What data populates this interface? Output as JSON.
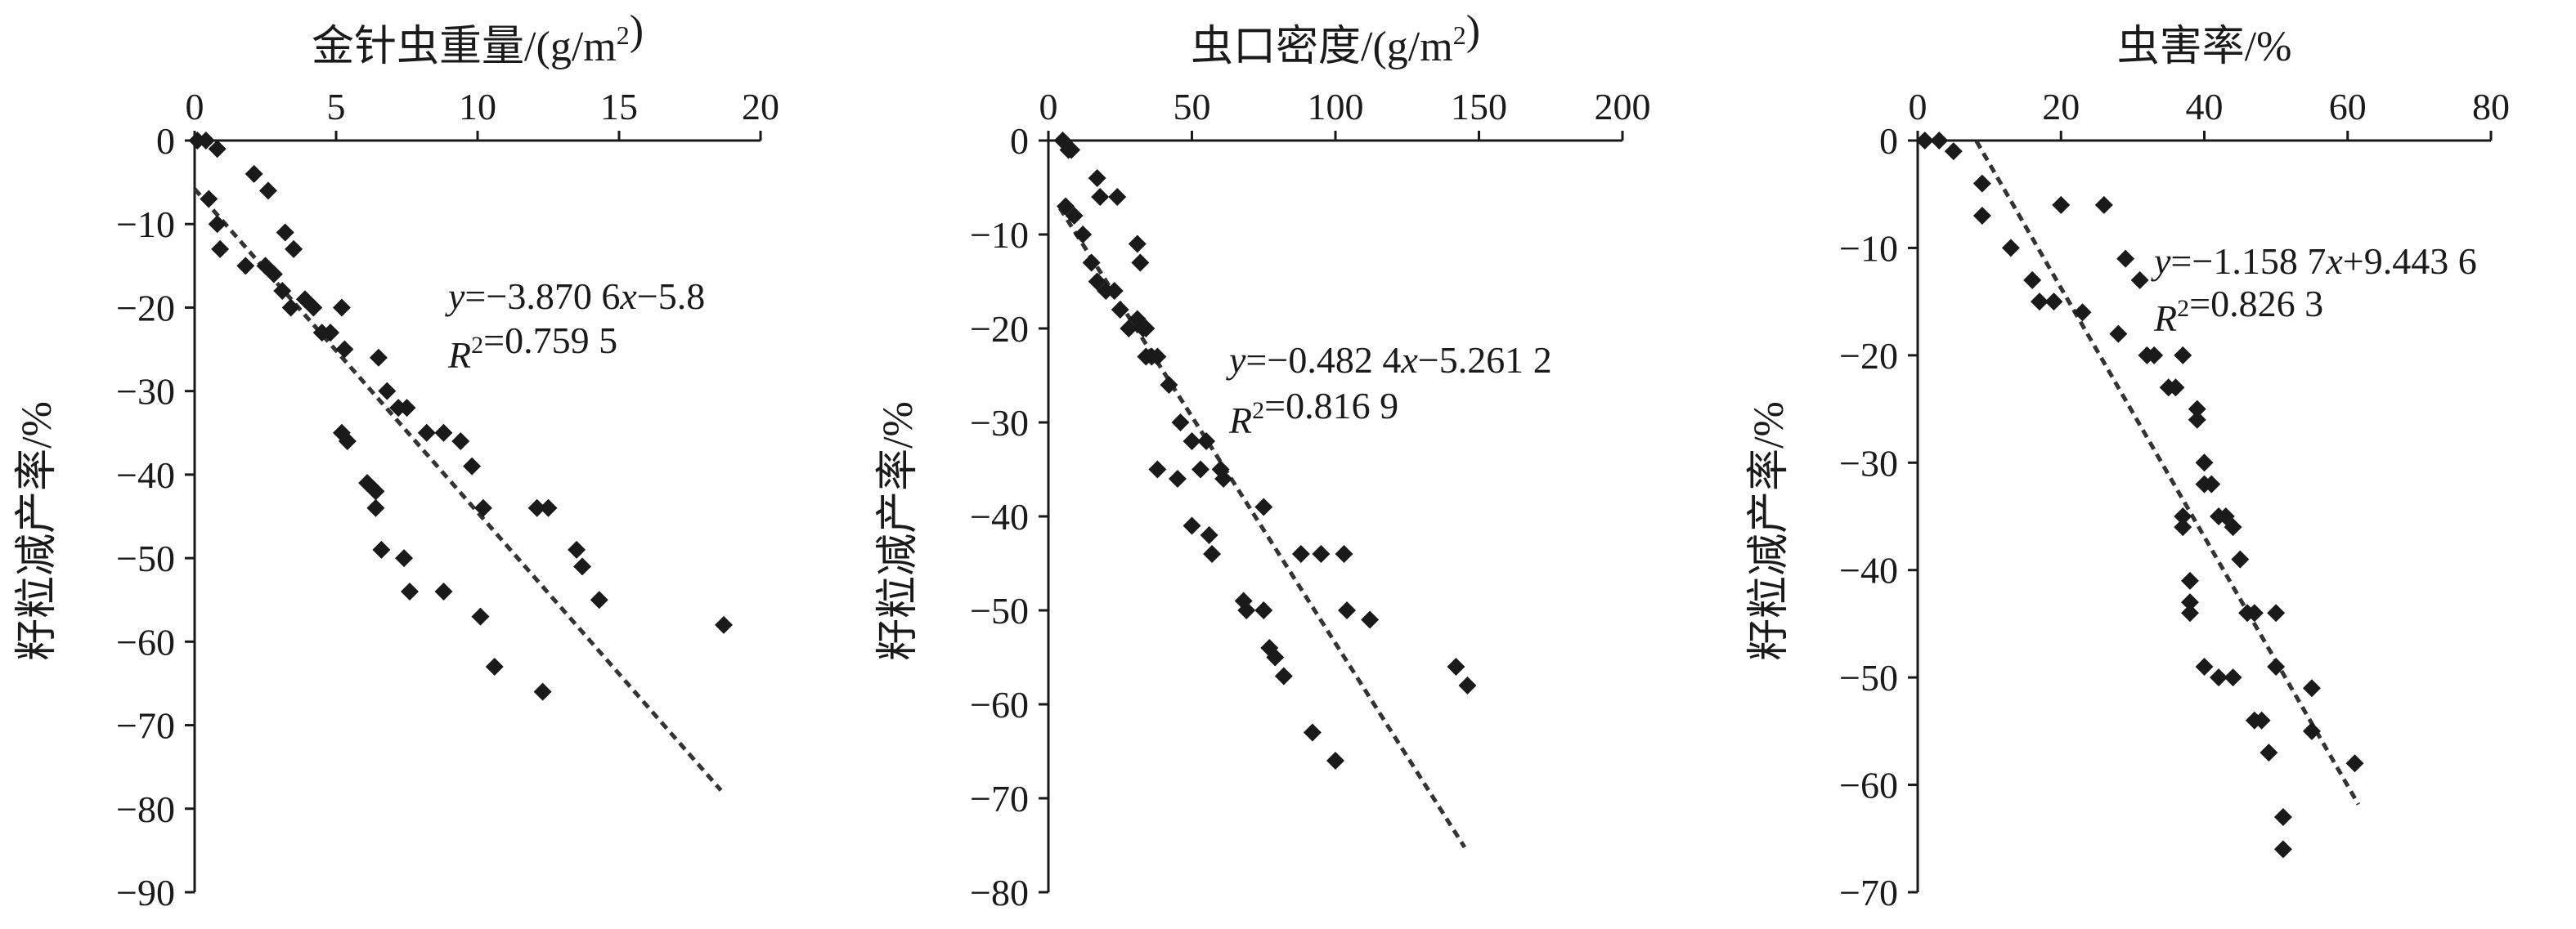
{
  "chart_data": [
    {
      "type": "scatter",
      "title": "金针虫重量/(g/m²)",
      "ylabel": "籽粒减产率/%",
      "xlim": [
        0,
        20
      ],
      "ylim": [
        -90,
        0
      ],
      "x_ticks": [
        0,
        5,
        10,
        15,
        20
      ],
      "y_ticks": [
        0,
        -10,
        -20,
        -30,
        -40,
        -50,
        -60,
        -70,
        -80,
        -90
      ],
      "x_tick_labels": [
        "0",
        "5",
        "10",
        "15",
        "20"
      ],
      "y_tick_labels": [
        "0",
        "−10",
        "−20",
        "−30",
        "−40",
        "−50",
        "−60",
        "−70",
        "−80",
        "−90"
      ],
      "x_axis_position": "top",
      "grid": false,
      "fit_line": {
        "slope": -3.8706,
        "intercept": -5.8,
        "x_range": [
          0,
          18.6
        ]
      },
      "equation": "y=−3.870 6x−5.8",
      "r2": "R²=0.759 5",
      "points": [
        [
          0.1,
          0
        ],
        [
          0.4,
          0
        ],
        [
          0.8,
          -1
        ],
        [
          0.5,
          -7
        ],
        [
          0.8,
          -10
        ],
        [
          0.9,
          -13
        ],
        [
          1.8,
          -15
        ],
        [
          2.1,
          -4
        ],
        [
          2.6,
          -6
        ],
        [
          2.5,
          -15
        ],
        [
          2.8,
          -16
        ],
        [
          3.1,
          -18
        ],
        [
          3.2,
          -11
        ],
        [
          3.5,
          -13
        ],
        [
          3.4,
          -20
        ],
        [
          3.9,
          -19
        ],
        [
          4.2,
          -20
        ],
        [
          4.5,
          -23
        ],
        [
          4.8,
          -23
        ],
        [
          5.2,
          -20
        ],
        [
          5.3,
          -25
        ],
        [
          5.2,
          -35
        ],
        [
          5.4,
          -36
        ],
        [
          6.1,
          -41
        ],
        [
          6.4,
          -42
        ],
        [
          6.4,
          -44
        ],
        [
          6.5,
          -26
        ],
        [
          6.6,
          -49
        ],
        [
          6.8,
          -30
        ],
        [
          7.2,
          -32
        ],
        [
          7.5,
          -32
        ],
        [
          7.4,
          -50
        ],
        [
          7.6,
          -54
        ],
        [
          8.2,
          -35
        ],
        [
          8.8,
          -35
        ],
        [
          8.8,
          -54
        ],
        [
          9.4,
          -36
        ],
        [
          9.8,
          -39
        ],
        [
          10.1,
          -57
        ],
        [
          10.2,
          -44
        ],
        [
          10.6,
          -63
        ],
        [
          12.1,
          -44
        ],
        [
          12.5,
          -44
        ],
        [
          12.3,
          -66
        ],
        [
          13.5,
          -49
        ],
        [
          13.7,
          -51
        ],
        [
          14.3,
          -55
        ],
        [
          18.7,
          -58
        ]
      ]
    },
    {
      "type": "scatter",
      "title": "虫口密度/(g/m²)",
      "ylabel": "籽粒减产率/%",
      "xlim": [
        0,
        200
      ],
      "ylim": [
        -80,
        0
      ],
      "x_ticks": [
        0,
        50,
        100,
        150,
        200
      ],
      "y_ticks": [
        0,
        -10,
        -20,
        -30,
        -40,
        -50,
        -60,
        -70,
        -80
      ],
      "x_tick_labels": [
        "0",
        "50",
        "100",
        "150",
        "200"
      ],
      "y_tick_labels": [
        "0",
        "−10",
        "−20",
        "−30",
        "−40",
        "−50",
        "−60",
        "−70",
        "−80"
      ],
      "x_axis_position": "top",
      "grid": false,
      "fit_line": {
        "slope": -0.4824,
        "intercept": -5.2612,
        "x_range": [
          4,
          145
        ]
      },
      "equation": "y=−0.482 4x−5.261 2",
      "r2": "R²=0.816 9",
      "points": [
        [
          5,
          0
        ],
        [
          7,
          -1
        ],
        [
          8,
          -1
        ],
        [
          6,
          -7
        ],
        [
          9,
          -8
        ],
        [
          12,
          -10
        ],
        [
          15,
          -13
        ],
        [
          17,
          -4
        ],
        [
          18,
          -6
        ],
        [
          17,
          -15
        ],
        [
          20,
          -16
        ],
        [
          23,
          -16
        ],
        [
          24,
          -6
        ],
        [
          25,
          -18
        ],
        [
          28,
          -20
        ],
        [
          31,
          -19
        ],
        [
          31,
          -11
        ],
        [
          32,
          -13
        ],
        [
          33,
          -20
        ],
        [
          34,
          -20
        ],
        [
          34,
          -23
        ],
        [
          36,
          -23
        ],
        [
          38,
          -23
        ],
        [
          38,
          -35
        ],
        [
          42,
          -26
        ],
        [
          45,
          -36
        ],
        [
          46,
          -30
        ],
        [
          50,
          -41
        ],
        [
          50,
          -32
        ],
        [
          53,
          -35
        ],
        [
          55,
          -32
        ],
        [
          56,
          -42
        ],
        [
          57,
          -44
        ],
        [
          60,
          -35
        ],
        [
          61,
          -36
        ],
        [
          68,
          -49
        ],
        [
          69,
          -50
        ],
        [
          75,
          -39
        ],
        [
          75,
          -50
        ],
        [
          77,
          -54
        ],
        [
          79,
          -55
        ],
        [
          82,
          -57
        ],
        [
          88,
          -44
        ],
        [
          92,
          -63
        ],
        [
          95,
          -44
        ],
        [
          100,
          -66
        ],
        [
          103,
          -44
        ],
        [
          104,
          -50
        ],
        [
          112,
          -51
        ],
        [
          142,
          -56
        ],
        [
          146,
          -58
        ]
      ]
    },
    {
      "type": "scatter",
      "title": "虫害率/%",
      "ylabel": "籽粒减产率/%",
      "xlim": [
        0,
        80
      ],
      "ylim": [
        -70,
        0
      ],
      "x_ticks": [
        0,
        20,
        40,
        60,
        80
      ],
      "y_ticks": [
        0,
        -10,
        -20,
        -30,
        -40,
        -50,
        -60,
        -70
      ],
      "x_tick_labels": [
        "0",
        "20",
        "40",
        "60",
        "80"
      ],
      "y_tick_labels": [
        "0",
        "−10",
        "−20",
        "−30",
        "−40",
        "−50",
        "−60",
        "−70"
      ],
      "x_axis_position": "top",
      "grid": false,
      "fit_line": {
        "slope": -1.1587,
        "intercept": 9.4436,
        "x_range": [
          8.2,
          61.5
        ]
      },
      "equation": "y=−1.158 7x+9.443 6",
      "r2": "R²=0.826 3",
      "points": [
        [
          1,
          0
        ],
        [
          3,
          0
        ],
        [
          5,
          -1
        ],
        [
          9,
          -4
        ],
        [
          9,
          -7
        ],
        [
          13,
          -10
        ],
        [
          16,
          -13
        ],
        [
          17,
          -15
        ],
        [
          19,
          -15
        ],
        [
          20,
          -6
        ],
        [
          23,
          -16
        ],
        [
          26,
          -6
        ],
        [
          28,
          -18
        ],
        [
          29,
          -11
        ],
        [
          31,
          -13
        ],
        [
          32,
          -20
        ],
        [
          33,
          -20
        ],
        [
          35,
          -23
        ],
        [
          36,
          -23
        ],
        [
          37,
          -20
        ],
        [
          37,
          -35
        ],
        [
          37,
          -36
        ],
        [
          38,
          -41
        ],
        [
          38,
          -43
        ],
        [
          38,
          -44
        ],
        [
          39,
          -25
        ],
        [
          39,
          -26
        ],
        [
          40,
          -30
        ],
        [
          40,
          -32
        ],
        [
          41,
          -32
        ],
        [
          40,
          -49
        ],
        [
          42,
          -35
        ],
        [
          42,
          -50
        ],
        [
          43,
          -35
        ],
        [
          44,
          -36
        ],
        [
          44,
          -50
        ],
        [
          45,
          -39
        ],
        [
          46,
          -44
        ],
        [
          47,
          -44
        ],
        [
          47,
          -54
        ],
        [
          48,
          -54
        ],
        [
          49,
          -57
        ],
        [
          50,
          -44
        ],
        [
          50,
          -49
        ],
        [
          51,
          -63
        ],
        [
          51,
          -66
        ],
        [
          55,
          -51
        ],
        [
          55,
          -55
        ],
        [
          61,
          -58
        ]
      ]
    }
  ]
}
